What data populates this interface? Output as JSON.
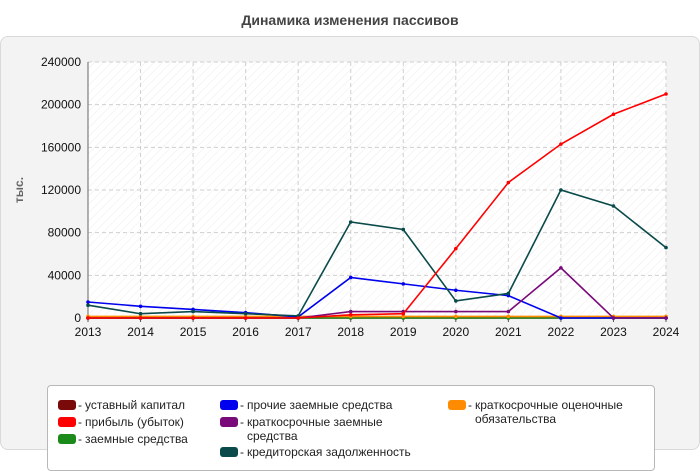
{
  "title": "Динамика изменения пассивов",
  "colors": {
    "ustavnyi": "#7a0a0a",
    "pribyl": "#ff0000",
    "zaemnye": "#1a8a1a",
    "prochie": "#0000ee",
    "kratkosrochnye_zaemnye": "#7a0a7a",
    "kreditorskaya": "#0b4a4a",
    "ocenochnye": "#ff8c00"
  },
  "legend": {
    "dash": "-",
    "items": [
      {
        "key": "ustavnyi",
        "label": "уставный капитал"
      },
      {
        "key": "pribyl",
        "label": "прибыль (убыток)"
      },
      {
        "key": "zaemnye",
        "label": "заемные средства"
      },
      {
        "key": "prochie",
        "label": "прочие заемные средства"
      },
      {
        "key": "kratkosrochnye_zaemnye",
        "label": "краткосрочные заемные средства"
      },
      {
        "key": "kreditorskaya",
        "label": "кредиторская задолженность"
      },
      {
        "key": "ocenochnye",
        "label": "краткосрочные оценочные обязательства"
      }
    ]
  },
  "chart_data": {
    "type": "line",
    "title": "Динамика изменения пассивов",
    "xlabel": "",
    "ylabel": "тыс.",
    "ylim": [
      0,
      240000
    ],
    "yticks": [
      0,
      40000,
      80000,
      120000,
      160000,
      200000,
      240000
    ],
    "grid": true,
    "legend_position": "bottom",
    "categories": [
      "2013",
      "2014",
      "2015",
      "2016",
      "2017",
      "2018",
      "2019",
      "2020",
      "2021",
      "2022",
      "2023",
      "2024"
    ],
    "series": [
      {
        "key": "ustavnyi",
        "name": "уставный капитал",
        "values": [
          100,
          100,
          100,
          100,
          100,
          100,
          100,
          100,
          100,
          100,
          100,
          100
        ]
      },
      {
        "key": "zaemnye",
        "name": "заемные средства",
        "values": [
          0,
          0,
          0,
          0,
          0,
          0,
          0,
          0,
          0,
          0,
          0,
          0
        ]
      },
      {
        "key": "ocenochnye",
        "name": "краткосрочные оценочные обязательства",
        "values": [
          1500,
          1500,
          1500,
          1500,
          1500,
          1500,
          1500,
          1500,
          1500,
          1500,
          1500,
          1500
        ]
      },
      {
        "key": "prochie",
        "name": "прочие заемные средства",
        "values": [
          15000,
          11000,
          8000,
          5000,
          1000,
          38000,
          32000,
          26000,
          21000,
          0,
          0,
          0
        ]
      },
      {
        "key": "kratkosrochnye_zaemnye",
        "name": "краткосрочные заемные средства",
        "values": [
          0,
          0,
          0,
          0,
          0,
          6000,
          6000,
          6000,
          6000,
          47000,
          0,
          0
        ]
      },
      {
        "key": "kreditorskaya",
        "name": "кредиторская задолженность",
        "values": [
          12000,
          4000,
          6000,
          4000,
          2000,
          90000,
          83000,
          16000,
          23000,
          120000,
          105000,
          66000
        ]
      },
      {
        "key": "pribyl",
        "name": "прибыль (убыток)",
        "values": [
          0,
          0,
          0,
          0,
          0,
          3000,
          4000,
          65000,
          127000,
          163000,
          191000,
          210000
        ]
      }
    ]
  }
}
